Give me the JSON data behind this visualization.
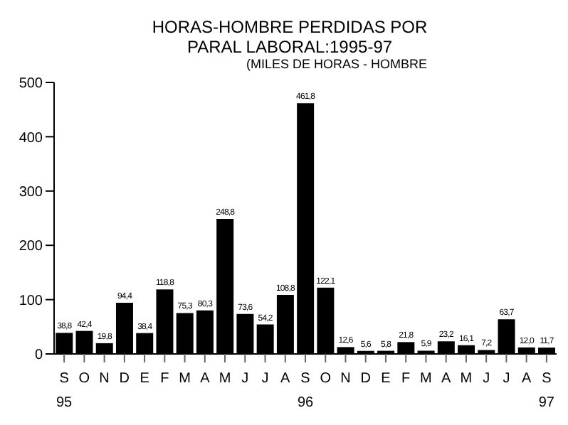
{
  "chart_data": {
    "type": "bar",
    "title": "HORAS-HOMBRE PERDIDAS POR PARAL LABORAL:1995-97",
    "subtitle": "(MILES DE HORAS - HOMBRE",
    "categories": [
      "S\n95",
      "O",
      "N",
      "D",
      "E",
      "F",
      "M",
      "A",
      "M",
      "J",
      "J",
      "A",
      "S\n96",
      "O",
      "N",
      "D",
      "E",
      "F",
      "M",
      "A",
      "M",
      "J",
      "J",
      "A",
      "S\n97"
    ],
    "values": [
      38.8,
      42.4,
      19.8,
      94.4,
      38.4,
      118.8,
      75.3,
      80.3,
      248.8,
      73.6,
      54.2,
      108.8,
      461.8,
      122.1,
      12.6,
      5.6,
      5.8,
      21.8,
      5.9,
      23.2,
      16.1,
      7.2,
      63.7,
      12.0,
      11.7
    ],
    "value_labels": [
      "38,8",
      "42,4",
      "19,8",
      "94,4",
      "38,4",
      "118,8",
      "75,3",
      "80,3",
      "248,8",
      "73,6",
      "54,2",
      "108,8",
      "461,8",
      "122,1",
      "12,6",
      "5,6",
      "5,8",
      "21,8",
      "5,9",
      "23,2",
      "16,1",
      "7,2",
      "63,7",
      "12,0",
      "11,7"
    ],
    "color": "#000000",
    "ylim": [
      0,
      500
    ],
    "yticks": [
      0,
      100,
      200,
      300,
      400,
      500
    ]
  }
}
